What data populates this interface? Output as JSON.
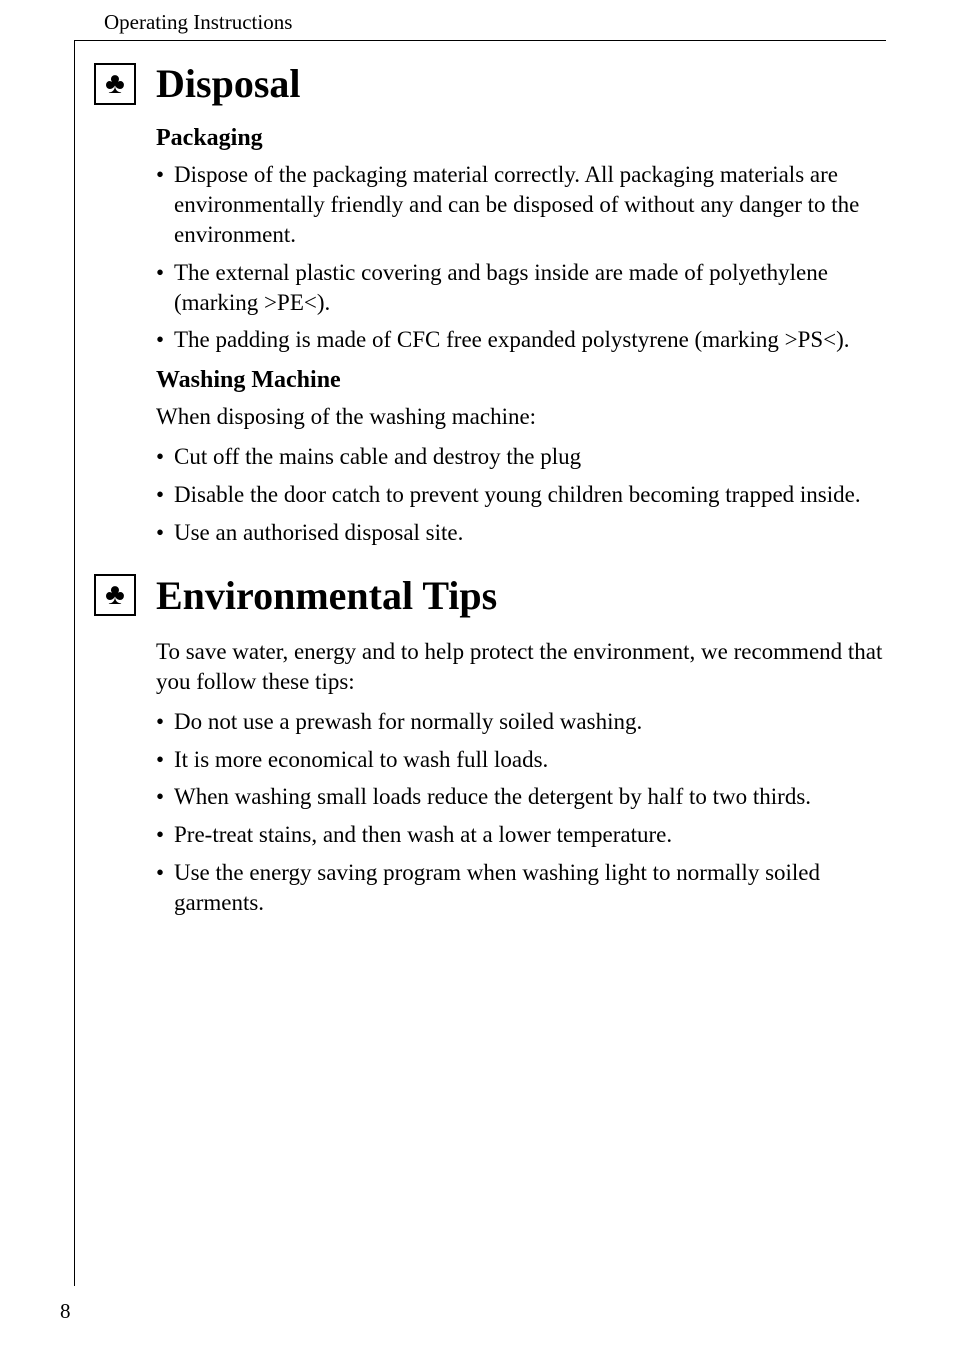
{
  "header": {
    "text": "Operating Instructions"
  },
  "sections": [
    {
      "icon": "♣",
      "title": "Disposal",
      "blocks": [
        {
          "type": "subtitle",
          "text": "Packaging"
        },
        {
          "type": "list",
          "items": [
            "Dispose of the packaging material correctly. All packaging materials are environmentally friendly and can be disposed of without any danger to the environment.",
            "The external plastic covering and bags inside are made of polyethylene (marking >PE<).",
            "The padding is made of CFC free expanded polystyrene (marking >PS<)."
          ]
        },
        {
          "type": "subtitle",
          "text": "Washing Machine"
        },
        {
          "type": "paragraph",
          "text": "When disposing of the washing machine:"
        },
        {
          "type": "list",
          "items": [
            "Cut off the mains cable and destroy the plug",
            "Disable the door catch to prevent young children becoming trapped inside.",
            "Use an authorised disposal site."
          ]
        }
      ]
    },
    {
      "icon": "♣",
      "title": "Environmental Tips",
      "blocks": [
        {
          "type": "paragraph",
          "text": "To save water, energy and to help protect the environment, we recommend that you follow these tips:"
        },
        {
          "type": "list",
          "items": [
            "Do not use a prewash for normally soiled washing.",
            "It is more economical to wash full loads.",
            "When washing small loads reduce the detergent by half to two thirds.",
            "Pre-treat stains, and then wash at a lower temperature.",
            "Use the energy saving program when washing light to normally soiled garments."
          ]
        }
      ]
    }
  ],
  "pageNumber": "8"
}
